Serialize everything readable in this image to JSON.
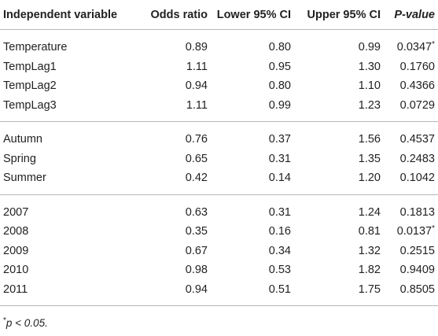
{
  "table": {
    "headers": [
      "Independent variable",
      "Odds ratio",
      "Lower 95% CI",
      "Upper 95% CI",
      "P-value"
    ],
    "groups": [
      {
        "rows": [
          {
            "variable": "Temperature",
            "odds_ratio": "0.89",
            "lower_ci": "0.80",
            "upper_ci": "0.99",
            "p_value": "0.0347",
            "p_mark": "*"
          },
          {
            "variable": "TempLag1",
            "odds_ratio": "1.11",
            "lower_ci": "0.95",
            "upper_ci": "1.30",
            "p_value": "0.1760",
            "p_mark": ""
          },
          {
            "variable": "TempLag2",
            "odds_ratio": "0.94",
            "lower_ci": "0.80",
            "upper_ci": "1.10",
            "p_value": "0.4366",
            "p_mark": ""
          },
          {
            "variable": "TempLag3",
            "odds_ratio": "1.11",
            "lower_ci": "0.99",
            "upper_ci": "1.23",
            "p_value": "0.0729",
            "p_mark": ""
          }
        ]
      },
      {
        "rows": [
          {
            "variable": "Autumn",
            "odds_ratio": "0.76",
            "lower_ci": "0.37",
            "upper_ci": "1.56",
            "p_value": "0.4537",
            "p_mark": ""
          },
          {
            "variable": "Spring",
            "odds_ratio": "0.65",
            "lower_ci": "0.31",
            "upper_ci": "1.35",
            "p_value": "0.2483",
            "p_mark": ""
          },
          {
            "variable": "Summer",
            "odds_ratio": "0.42",
            "lower_ci": "0.14",
            "upper_ci": "1.20",
            "p_value": "0.1042",
            "p_mark": ""
          }
        ]
      },
      {
        "rows": [
          {
            "variable": "2007",
            "odds_ratio": "0.63",
            "lower_ci": "0.31",
            "upper_ci": "1.24",
            "p_value": "0.1813",
            "p_mark": ""
          },
          {
            "variable": "2008",
            "odds_ratio": "0.35",
            "lower_ci": "0.16",
            "upper_ci": "0.81",
            "p_value": "0.0137",
            "p_mark": "*"
          },
          {
            "variable": "2009",
            "odds_ratio": "0.67",
            "lower_ci": "0.34",
            "upper_ci": "1.32",
            "p_value": "0.2515",
            "p_mark": ""
          },
          {
            "variable": "2010",
            "odds_ratio": "0.98",
            "lower_ci": "0.53",
            "upper_ci": "1.82",
            "p_value": "0.9409",
            "p_mark": ""
          },
          {
            "variable": "2011",
            "odds_ratio": "0.94",
            "lower_ci": "0.51",
            "upper_ci": "1.75",
            "p_value": "0.8505",
            "p_mark": ""
          }
        ]
      }
    ]
  },
  "footnote": {
    "mark": "*",
    "text": "p < 0.05."
  }
}
